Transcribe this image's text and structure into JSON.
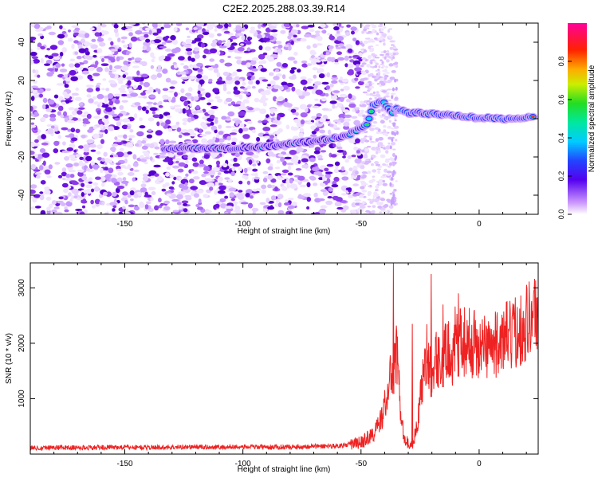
{
  "title": "C2E2.2025.288.03.39.R14",
  "colors": {
    "axis": "#000000",
    "snr_line": "#ee2222",
    "speckle": "#8a2be2"
  },
  "chart_data": [
    {
      "type": "heatmap",
      "name": "spectrogram",
      "title": "C2E2.2025.288.03.39.R14",
      "xlabel": "Height of straight line (km)",
      "ylabel": "Frequency (Hz)",
      "xlim": [
        -190,
        25
      ],
      "ylim": [
        -50,
        50
      ],
      "xticks": [
        -150,
        -100,
        -50,
        0
      ],
      "xtick_labels": [
        "-150",
        "-100",
        "-50",
        "0"
      ],
      "yticks": [
        -40,
        -20,
        0,
        20,
        40
      ],
      "ytick_labels": [
        "-40",
        "-20",
        "0",
        "20",
        "40"
      ],
      "colorbar": {
        "label": "Normalized spectral amplitude",
        "range": [
          0,
          1
        ],
        "ticks": [
          0.0,
          0.2,
          0.4,
          0.6,
          0.8
        ],
        "tick_labels": [
          "0.0",
          "0.2",
          "0.4",
          "0.6",
          "0.8"
        ],
        "colormap": "rainbow (white-purple-blue-cyan-green-yellow-red-magenta)"
      },
      "noise_extent_x": [
        -190,
        -50
      ],
      "signal_ridge": {
        "x": [
          -133,
          -125,
          -115,
          -105,
          -95,
          -85,
          -75,
          -65,
          -60,
          -55,
          -50,
          -47,
          -45,
          -42,
          -40,
          -37,
          -35,
          -30,
          -25,
          -20,
          -15,
          -10,
          -5,
          0,
          5,
          10,
          15,
          20,
          23
        ],
        "y": [
          -15.5,
          -15.5,
          -15.5,
          -15.5,
          -15,
          -14,
          -12.5,
          -11,
          -10,
          -8,
          -5,
          -2,
          7,
          9,
          8,
          3,
          5,
          3,
          3,
          2.5,
          2,
          1.5,
          1,
          0.5,
          0.5,
          0,
          0,
          0.5,
          0.5
        ]
      }
    },
    {
      "type": "line",
      "name": "snr",
      "xlabel": "Height of straight line (km)",
      "ylabel": "SNR (10 * v/v)",
      "xlim": [
        -190,
        25
      ],
      "ylim": [
        0,
        3450
      ],
      "xticks": [
        -150,
        -100,
        -50,
        0
      ],
      "xtick_labels": [
        "-150",
        "-100",
        "-50",
        "0"
      ],
      "yticks": [
        1000,
        2000,
        3000
      ],
      "ytick_labels": [
        "1000",
        "2000",
        "3000"
      ],
      "series": [
        {
          "name": "SNR",
          "x": [
            -190,
            -180,
            -170,
            -160,
            -150,
            -140,
            -130,
            -120,
            -110,
            -100,
            -90,
            -80,
            -70,
            -60,
            -55,
            -50,
            -47,
            -45,
            -43,
            -41,
            -39,
            -38,
            -37,
            -36,
            -35,
            -34,
            -33,
            -32,
            -31,
            -30,
            -29,
            -28,
            -27,
            -26,
            -25,
            -24,
            -23,
            -22,
            -21,
            -20,
            -19,
            -18,
            -17,
            -16,
            -15,
            -14,
            -13,
            -12,
            -11,
            -10,
            -9,
            -8,
            -7,
            -6,
            -5,
            -4,
            -3,
            -2,
            -1,
            0,
            2,
            4,
            6,
            8,
            10,
            12,
            14,
            16,
            18,
            20,
            22,
            25
          ],
          "y": [
            110,
            120,
            115,
            120,
            125,
            120,
            125,
            130,
            125,
            130,
            125,
            130,
            140,
            150,
            170,
            210,
            300,
            350,
            480,
            700,
            1050,
            1300,
            1450,
            1650,
            1800,
            1500,
            550,
            380,
            250,
            180,
            160,
            220,
            350,
            650,
            950,
            1300,
            1700,
            1850,
            1500,
            1450,
            1600,
            1700,
            1750,
            1550,
            1900,
            1800,
            1850,
            1950,
            1700,
            2100,
            2000,
            2100,
            1950,
            2050,
            2100,
            2000,
            1950,
            2050,
            1900,
            1900,
            1950,
            2000,
            1900,
            2050,
            2000,
            2150,
            2100,
            2250,
            2300,
            2400,
            2500,
            2600
          ],
          "peaks": [
            {
              "x": -36.5,
              "y": 3450
            },
            {
              "x": -20.5,
              "y": 3250
            },
            {
              "x": -28.5,
              "y": 2350
            },
            {
              "x": -15.5,
              "y": 2700
            },
            {
              "x": -9,
              "y": 2900
            }
          ]
        }
      ]
    }
  ]
}
